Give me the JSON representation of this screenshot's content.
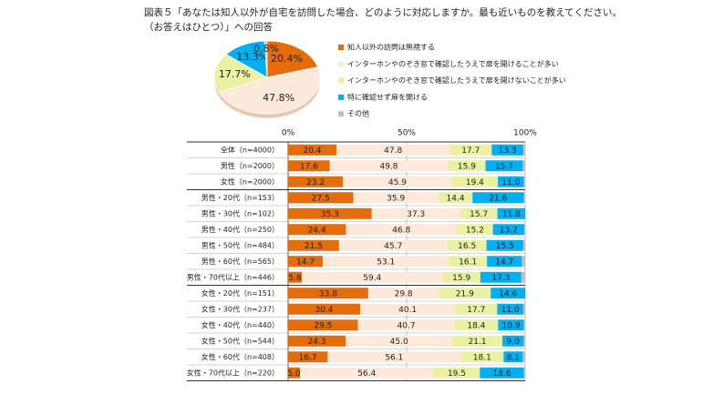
{
  "chart_data": [
    {
      "type": "pie",
      "title": [
        "図表５「あなたは知人以外が自宅を訪問した場合、どのように対応しますか。最も近いものを教えてください。",
        "（お答えはひとつ）」への回答"
      ],
      "values": [
        20.4,
        47.8,
        17.7,
        13.3,
        0.8
      ],
      "value_labels": [
        "20.4%",
        "47.8%",
        "17.7%",
        "13.3%",
        "0.8%"
      ],
      "colors": [
        "#e46c0a",
        "#fde9d9",
        "#eaf1a3",
        "#00b0f0",
        "#bfbfbf"
      ]
    },
    {
      "type": "bar",
      "horizontal": true,
      "stacked": true,
      "grid": true,
      "categories": [
        "全体（n=4000）",
        "男性（n=2000）",
        "女性（n=2000）",
        "男性・20代（n=153）",
        "男性・30代（n=102）",
        "男性・40代（n=250）",
        "男性・50代（n=484）",
        "男性・60代（n=565）",
        "男性・70代以上（n=446）",
        "女性・20代（n=151）",
        "女性・30代（n=237）",
        "女性・40代（n=440）",
        "女性・50代（n=544）",
        "女性・60代（n=408）",
        "女性・70代以上（n=220）"
      ],
      "xlim": [
        0,
        100
      ],
      "xticks": [
        {
          "value": 0,
          "label": "0%"
        },
        {
          "value": 50,
          "label": "50%"
        },
        {
          "value": 100,
          "label": "100%"
        }
      ],
      "series": [
        {
          "name": "知人以外の訪問は無視する",
          "color": "#e46c0a",
          "values": [
            20.4,
            17.6,
            23.2,
            27.5,
            35.3,
            24.4,
            21.5,
            14.7,
            5.8,
            33.8,
            30.4,
            29.5,
            24.3,
            16.7,
            5.0
          ],
          "value_labels": [
            "20.4",
            "17.6",
            "23.2",
            "27.5",
            "35.3",
            "24.4",
            "21.5",
            "14.7",
            "5.8",
            "33.8",
            "30.4",
            "29.5",
            "24.3",
            "16.7",
            "5.0"
          ]
        },
        {
          "name": "インターホンやのぞき窓で確認したうえで扉を開けることが多い",
          "color": "#fde9d9",
          "values": [
            47.8,
            49.8,
            45.9,
            35.9,
            37.3,
            46.8,
            45.7,
            53.1,
            59.4,
            29.8,
            40.1,
            40.7,
            45.0,
            56.1,
            56.4
          ],
          "value_labels": [
            "47.8",
            "49.8",
            "45.9",
            "35.9",
            "37.3",
            "46.8",
            "45.7",
            "53.1",
            "59.4",
            "29.8",
            "40.1",
            "40.7",
            "45.0",
            "56.1",
            "56.4"
          ]
        },
        {
          "name": "インターホンやのぞき窓で確認したうえで扉を開けないことが多い",
          "color": "#eaf1a3",
          "values": [
            17.7,
            15.9,
            19.4,
            14.4,
            15.7,
            15.2,
            16.5,
            16.1,
            15.9,
            21.9,
            17.7,
            18.4,
            21.1,
            18.1,
            19.5
          ],
          "value_labels": [
            "17.7",
            "15.9",
            "19.4",
            "14.4",
            "15.7",
            "15.2",
            "16.5",
            "16.1",
            "15.9",
            "21.9",
            "17.7",
            "18.4",
            "21.1",
            "18.1",
            "19.5"
          ]
        },
        {
          "name": "特に確認せず扉を開ける",
          "color": "#00b0f0",
          "values": [
            13.3,
            15.7,
            11.0,
            21.6,
            11.8,
            13.2,
            15.5,
            14.7,
            17.3,
            14.6,
            11.0,
            10.9,
            9.0,
            8.1,
            18.6
          ],
          "value_labels": [
            "13.3",
            "15.7",
            "11.0",
            "21.6",
            "11.8",
            "13.2",
            "15.5",
            "14.7",
            "17.3",
            "14.6",
            "11.0",
            "10.9",
            "9.0",
            "8.1",
            "18.6"
          ]
        },
        {
          "name": "その他",
          "color": "#bfbfbf",
          "values": [
            0.8,
            1.0,
            0.5,
            0.6,
            0,
            0.4,
            0.8,
            1.4,
            1.6,
            0,
            0.8,
            0.5,
            0.6,
            1.0,
            0.5
          ]
        }
      ]
    }
  ]
}
